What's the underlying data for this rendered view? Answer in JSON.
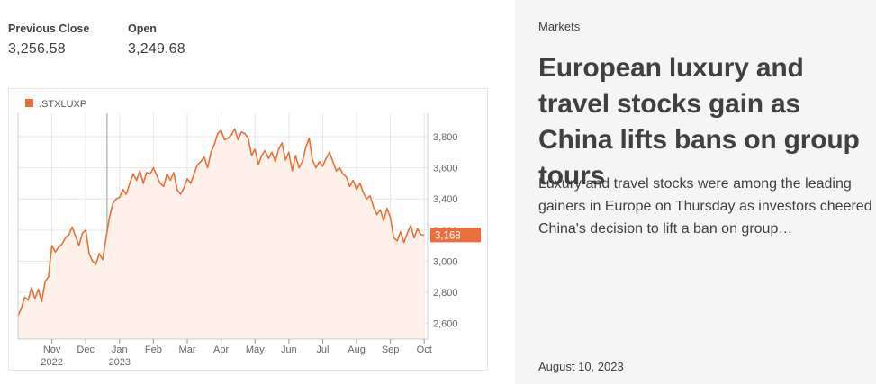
{
  "stats": {
    "previous_close": {
      "label": "Previous Close",
      "value": "3,256.58"
    },
    "open": {
      "label": "Open",
      "value": "3,249.68"
    }
  },
  "article": {
    "kicker": "Markets",
    "headline": "European luxury and travel stocks gain as China lifts bans on group tours",
    "summary": "Luxury and travel stocks were among the leading gainers in Europe on Thursday as investors cheered China's decision to lift a ban on group…",
    "date": "August 10, 2023"
  },
  "colors": {
    "line": "#e8703a",
    "fill": "#fdf1ea",
    "badge": "#e8703a",
    "grid": "#e6e6e6",
    "text": "#404040"
  },
  "chart_data": {
    "type": "area",
    "legend": [
      ".STXLUXP"
    ],
    "legend_position": "top-left",
    "current_value_label": "3,168",
    "y_ticks": [
      "3,800",
      "3,600",
      "3,400",
      "3,200",
      "3,000",
      "2,800",
      "2,600"
    ],
    "y_tick_values": [
      3800,
      3600,
      3400,
      3200,
      3000,
      2800,
      2600
    ],
    "ylim": [
      2500,
      3950
    ],
    "x_ticks": [
      "Nov",
      "Dec",
      "Jan",
      "Feb",
      "Mar",
      "Apr",
      "May",
      "Jun",
      "Jul",
      "Aug",
      "Sep",
      "Oct"
    ],
    "x_tick_positions": [
      1,
      2,
      3,
      4,
      5,
      6,
      7,
      8,
      9,
      10,
      11,
      12
    ],
    "x_year_labels": [
      {
        "label": "2022",
        "at": 1
      },
      {
        "label": "2023",
        "at": 3
      }
    ],
    "xlim": [
      0,
      12.1
    ],
    "grid": true,
    "series": [
      {
        "name": ".STXLUXP",
        "x": [
          0.0,
          0.1,
          0.2,
          0.3,
          0.4,
          0.5,
          0.6,
          0.7,
          0.8,
          0.9,
          1.0,
          1.1,
          1.2,
          1.3,
          1.4,
          1.5,
          1.6,
          1.7,
          1.8,
          1.9,
          2.0,
          2.1,
          2.2,
          2.3,
          2.4,
          2.5,
          2.6,
          2.7,
          2.8,
          2.9,
          3.0,
          3.1,
          3.2,
          3.3,
          3.4,
          3.5,
          3.6,
          3.7,
          3.8,
          3.9,
          4.0,
          4.1,
          4.2,
          4.3,
          4.4,
          4.5,
          4.6,
          4.7,
          4.8,
          4.9,
          5.0,
          5.1,
          5.2,
          5.3,
          5.4,
          5.5,
          5.6,
          5.7,
          5.8,
          5.9,
          6.0,
          6.1,
          6.2,
          6.3,
          6.4,
          6.5,
          6.6,
          6.7,
          6.8,
          6.9,
          7.0,
          7.1,
          7.2,
          7.3,
          7.4,
          7.5,
          7.6,
          7.7,
          7.8,
          7.9,
          8.0,
          8.1,
          8.2,
          8.3,
          8.4,
          8.5,
          8.6,
          8.7,
          8.8,
          8.9,
          9.0,
          9.1,
          9.2,
          9.3,
          9.4,
          9.5,
          9.6,
          9.7,
          9.8,
          9.9,
          10.0,
          10.1,
          10.2,
          10.3,
          10.4,
          10.5,
          10.6,
          10.7,
          10.8,
          10.9,
          11.0,
          11.1,
          11.2,
          11.3,
          11.4,
          11.5,
          11.6,
          11.7,
          11.8,
          11.9,
          12.0
        ],
        "values": [
          2650,
          2700,
          2770,
          2750,
          2830,
          2760,
          2820,
          2740,
          2870,
          2900,
          3100,
          3060,
          3090,
          3110,
          3150,
          3170,
          3220,
          3160,
          3100,
          3180,
          3200,
          3050,
          3000,
          2980,
          3050,
          3010,
          3150,
          3280,
          3370,
          3400,
          3410,
          3460,
          3430,
          3500,
          3560,
          3520,
          3580,
          3500,
          3570,
          3560,
          3600,
          3550,
          3500,
          3480,
          3560,
          3520,
          3570,
          3460,
          3430,
          3470,
          3530,
          3500,
          3560,
          3620,
          3640,
          3670,
          3600,
          3700,
          3750,
          3820,
          3840,
          3780,
          3790,
          3810,
          3850,
          3780,
          3830,
          3820,
          3790,
          3680,
          3720,
          3620,
          3680,
          3710,
          3660,
          3700,
          3640,
          3720,
          3760,
          3650,
          3700,
          3580,
          3680,
          3600,
          3640,
          3730,
          3790,
          3650,
          3600,
          3640,
          3610,
          3660,
          3700,
          3640,
          3580,
          3600,
          3560,
          3540,
          3480,
          3520,
          3460,
          3500,
          3440,
          3400,
          3420,
          3350,
          3300,
          3330,
          3260,
          3340,
          3280,
          3150,
          3130,
          3190,
          3120,
          3180,
          3230,
          3150,
          3210,
          3170,
          3168
        ]
      }
    ]
  }
}
